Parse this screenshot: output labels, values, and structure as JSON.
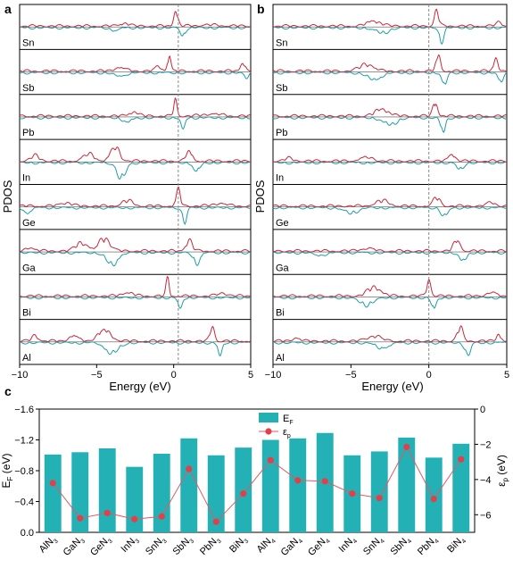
{
  "colors": {
    "up": "#c8283a",
    "down": "#1f9ea6",
    "bar": "#23b1b6",
    "dot": "#e0404a",
    "line": "#e05a62",
    "fermi": "#888888"
  },
  "chart_data": [
    {
      "panel": "a",
      "type": "line",
      "ylabel": "PDOS",
      "xlabel": "Energy (eV)",
      "xlim": [
        -10,
        5
      ],
      "xticks": [
        -10,
        -5,
        0,
        5
      ],
      "x_tick_labels": [
        "−10",
        "−5",
        "0",
        "5"
      ],
      "fermi_level": 0.3,
      "elements": [
        "Sn",
        "Sb",
        "Pb",
        "In",
        "Ge",
        "Ga",
        "Bi",
        "Al"
      ],
      "peaks": {
        "Sn": [
          [
            0.15,
            0.9,
            0.18
          ],
          [
            0.6,
            -0.5,
            0.2
          ],
          [
            -3.2,
            0.18,
            0.4
          ],
          [
            -3.8,
            -0.15,
            0.4
          ],
          [
            2.3,
            0.06,
            1.0
          ]
        ],
        "Sb": [
          [
            -0.3,
            0.95,
            0.15
          ],
          [
            -1.0,
            0.25,
            0.3
          ],
          [
            -3.5,
            0.2,
            0.5
          ],
          [
            4.5,
            0.5,
            0.2
          ],
          [
            4.7,
            -0.3,
            0.2
          ],
          [
            -3.5,
            -0.2,
            0.5
          ]
        ],
        "Pb": [
          [
            0.1,
            0.9,
            0.15
          ],
          [
            0.6,
            -0.6,
            0.2
          ],
          [
            -2.6,
            0.25,
            0.4
          ],
          [
            -3.0,
            -0.25,
            0.4
          ],
          [
            2.5,
            0.12,
            0.8
          ]
        ],
        "In": [
          [
            -3.8,
            0.8,
            0.4
          ],
          [
            -3.4,
            -0.9,
            0.4
          ],
          [
            -5.5,
            0.4,
            0.5
          ],
          [
            1.0,
            0.5,
            0.3
          ],
          [
            1.5,
            -0.5,
            0.3
          ],
          [
            -9.0,
            0.3,
            0.4
          ]
        ],
        "Ge": [
          [
            0.3,
            0.9,
            0.2
          ],
          [
            0.7,
            -0.8,
            0.2
          ],
          [
            -3.0,
            0.3,
            0.5
          ],
          [
            -9.5,
            -0.3,
            0.3
          ],
          [
            -7.0,
            0.2,
            0.5
          ],
          [
            3.0,
            0.15,
            0.6
          ]
        ],
        "Ga": [
          [
            -4.5,
            0.75,
            0.5
          ],
          [
            -4.0,
            -0.7,
            0.5
          ],
          [
            -6.0,
            0.5,
            0.5
          ],
          [
            1.0,
            0.6,
            0.3
          ],
          [
            1.5,
            -0.6,
            0.3
          ],
          [
            -9.3,
            0.2,
            0.4
          ]
        ],
        "Bi": [
          [
            -0.4,
            0.95,
            0.15
          ],
          [
            0.4,
            -0.6,
            0.2
          ],
          [
            -3.0,
            0.2,
            0.5
          ],
          [
            3.2,
            0.15,
            0.5
          ]
        ],
        "Al": [
          [
            -4.5,
            0.6,
            0.6
          ],
          [
            -4.0,
            -0.6,
            0.6
          ],
          [
            -6.5,
            0.3,
            0.4
          ],
          [
            2.5,
            0.8,
            0.2
          ],
          [
            3.0,
            -0.7,
            0.2
          ],
          [
            -9.0,
            0.3,
            0.3
          ]
        ]
      }
    },
    {
      "panel": "b",
      "type": "line",
      "ylabel": "PDOS",
      "xlabel": "Energy (eV)",
      "xlim": [
        -10,
        5
      ],
      "xticks": [
        -10,
        -5,
        0,
        5
      ],
      "x_tick_labels": [
        "−10",
        "−5",
        "0",
        "5"
      ],
      "fermi_level": 0.0,
      "elements": [
        "Sn",
        "Sb",
        "Pb",
        "In",
        "Ge",
        "Ga",
        "Bi",
        "Al"
      ],
      "peaks": {
        "Sn": [
          [
            0.5,
            0.85,
            0.2
          ],
          [
            0.8,
            -0.8,
            0.2
          ],
          [
            -3.5,
            0.3,
            0.6
          ],
          [
            -3.0,
            -0.3,
            0.6
          ],
          [
            4.5,
            0.2,
            0.3
          ]
        ],
        "Sb": [
          [
            0.6,
            0.9,
            0.2
          ],
          [
            1.0,
            -0.8,
            0.2
          ],
          [
            -4.0,
            0.4,
            0.6
          ],
          [
            -3.5,
            -0.4,
            0.6
          ],
          [
            4.3,
            0.7,
            0.2
          ],
          [
            4.6,
            -0.6,
            0.2
          ]
        ],
        "Pb": [
          [
            0.4,
            0.85,
            0.2
          ],
          [
            0.9,
            -0.85,
            0.2
          ],
          [
            -3.0,
            0.4,
            0.6
          ],
          [
            -2.5,
            -0.4,
            0.6
          ]
        ],
        "In": [
          [
            1.5,
            0.4,
            0.3
          ],
          [
            2.0,
            -0.4,
            0.3
          ],
          [
            -4.0,
            0.2,
            0.6
          ],
          [
            -9.0,
            0.15,
            0.4
          ]
        ],
        "Ge": [
          [
            0.5,
            0.5,
            0.3
          ],
          [
            1.0,
            -0.5,
            0.3
          ],
          [
            -3.0,
            0.3,
            0.6
          ],
          [
            -5.0,
            -0.3,
            0.6
          ],
          [
            4.0,
            0.2,
            0.4
          ]
        ],
        "Ga": [
          [
            1.8,
            0.6,
            0.3
          ],
          [
            2.2,
            -0.5,
            0.3
          ],
          [
            -4.0,
            0.15,
            0.6
          ],
          [
            -7.0,
            -0.15,
            0.5
          ]
        ],
        "Bi": [
          [
            0.0,
            0.85,
            0.2
          ],
          [
            0.3,
            -0.7,
            0.2
          ],
          [
            -3.5,
            0.5,
            0.6
          ],
          [
            -4.0,
            -0.4,
            0.6
          ],
          [
            4.0,
            0.2,
            0.4
          ]
        ],
        "Al": [
          [
            2.0,
            0.8,
            0.25
          ],
          [
            2.5,
            -0.7,
            0.25
          ],
          [
            -3.5,
            0.3,
            0.6
          ],
          [
            -3.0,
            -0.3,
            0.6
          ],
          [
            4.5,
            0.4,
            0.2
          ],
          [
            -8.5,
            0.2,
            0.3
          ]
        ]
      }
    },
    {
      "panel": "c",
      "type": "bar",
      "categories": [
        "AlN3",
        "GaN3",
        "GeN3",
        "InN3",
        "SnN3",
        "SbN3",
        "PbN3",
        "BiN3",
        "AlN4",
        "GaN4",
        "GeN4",
        "InN4",
        "SnN4",
        "SbN4",
        "PbN4",
        "BiN4"
      ],
      "category_labels": [
        {
          "base": "AlN",
          "sub": "3"
        },
        {
          "base": "GaN",
          "sub": "3"
        },
        {
          "base": "GeN",
          "sub": "3"
        },
        {
          "base": "InN",
          "sub": "3"
        },
        {
          "base": "SnN",
          "sub": "3"
        },
        {
          "base": "SbN",
          "sub": "3"
        },
        {
          "base": "PbN",
          "sub": "3"
        },
        {
          "base": "BiN",
          "sub": "3"
        },
        {
          "base": "AlN",
          "sub": "4"
        },
        {
          "base": "GaN",
          "sub": "4"
        },
        {
          "base": "GeN",
          "sub": "4"
        },
        {
          "base": "InN",
          "sub": "4"
        },
        {
          "base": "SnN",
          "sub": "4"
        },
        {
          "base": "SbN",
          "sub": "4"
        },
        {
          "base": "PbN",
          "sub": "4"
        },
        {
          "base": "BiN",
          "sub": "4"
        }
      ],
      "series": [
        {
          "name": "EF",
          "name_base": "E",
          "name_sub": "F",
          "axis": "left",
          "kind": "bar",
          "values": [
            -1.01,
            -1.04,
            -1.09,
            -0.85,
            -1.02,
            -1.22,
            -1.0,
            -1.1,
            -1.2,
            -1.22,
            -1.29,
            -1.0,
            -1.05,
            -1.23,
            -0.97,
            -1.15
          ]
        },
        {
          "name": "εp",
          "name_base": "ε",
          "name_sub": "p",
          "axis": "right",
          "kind": "line",
          "values": [
            -4.2,
            -6.2,
            -5.9,
            -6.25,
            -6.1,
            -3.4,
            -6.4,
            -4.8,
            -2.9,
            -4.05,
            -4.1,
            -4.8,
            -5.05,
            -2.15,
            -5.1,
            -2.85
          ]
        }
      ],
      "left_axis": {
        "label_base": "E",
        "label_sub": "F",
        "label_unit": "(eV)",
        "ylim": [
          0.0,
          -1.6
        ],
        "ticks": [
          0.0,
          -0.4,
          -0.8,
          -1.2,
          -1.6
        ],
        "tick_labels": [
          "0.0",
          "−0.4",
          "−0.8",
          "−1.2",
          "−1.6"
        ]
      },
      "right_axis": {
        "label_base": "ε",
        "label_sub": "p",
        "label_unit": "(eV)",
        "ylim": [
          -7,
          0
        ],
        "ticks": [
          0,
          -2,
          -4,
          -6
        ],
        "tick_labels": [
          "0",
          "−2",
          "−4",
          "−6"
        ]
      },
      "legend": "top-center"
    }
  ],
  "panel_labels": [
    "a",
    "b",
    "c"
  ]
}
